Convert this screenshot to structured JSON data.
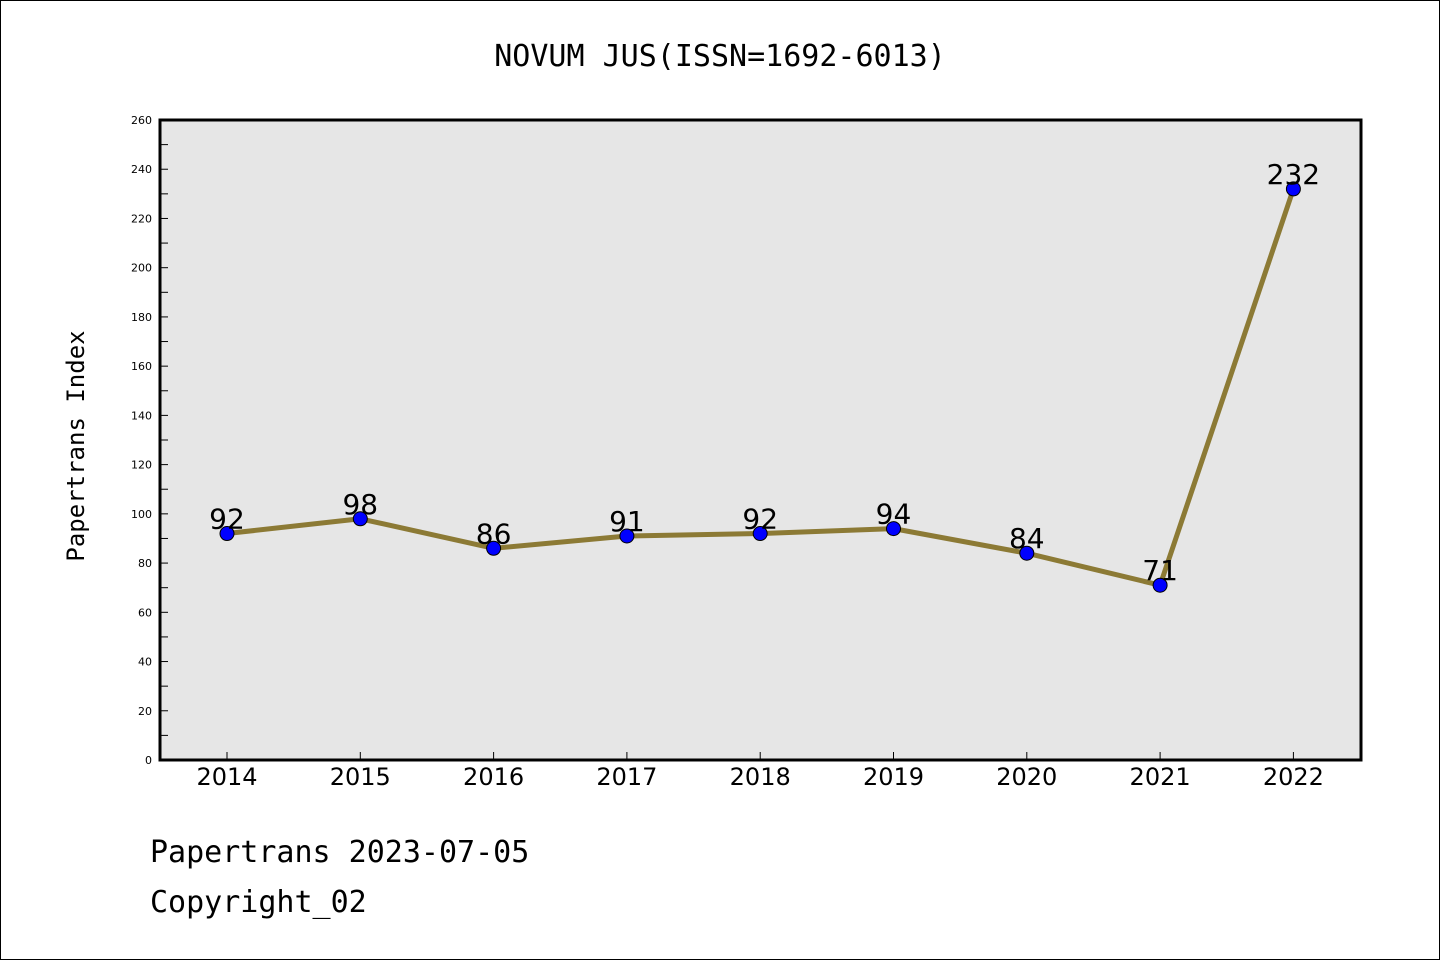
{
  "chart_data": {
    "type": "line",
    "title": "NOVUM JUS(ISSN=1692-6013)",
    "xlabel": "",
    "ylabel": "Papertrans Index",
    "categories": [
      "2014",
      "2015",
      "2016",
      "2017",
      "2018",
      "2019",
      "2020",
      "2021",
      "2022"
    ],
    "series": [
      {
        "values": [
          92,
          98,
          86,
          91,
          92,
          94,
          84,
          71,
          232
        ]
      }
    ],
    "ylim": [
      0,
      260
    ],
    "yticks": [
      0,
      20,
      40,
      60,
      80,
      100,
      120,
      140,
      160,
      180,
      200,
      220,
      240,
      260
    ],
    "grid": false,
    "data_labels": true,
    "colors": {
      "line": "#8c7a35",
      "marker": "#0000ff",
      "plot_background": "#e6e6e6"
    }
  },
  "footer": {
    "date_text": "Papertrans 2023-07-05",
    "copyright_text": "Copyright_02"
  }
}
